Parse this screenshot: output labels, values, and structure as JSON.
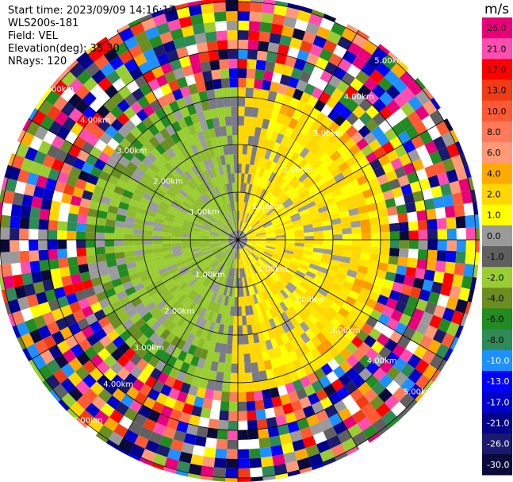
{
  "header": {
    "start_time": "Start time: 2023/09/09 14:16:17",
    "instrument": "WLS200s-181",
    "field": "Field: VEL",
    "elevation": "Elevation(deg): 35.30",
    "nrays": "NRays: 120"
  },
  "chart_data": {
    "type": "heatmap",
    "projection": "polar-ppi",
    "field": "VEL",
    "nrays": 120,
    "elevation_deg": 35.3,
    "unit": "m/s",
    "range_ring_labels": [
      "1.00km",
      "2.00km",
      "3.00km",
      "4.00km",
      "5.00km"
    ],
    "colorbar": {
      "ticks": [
        "26.0",
        "21.0",
        "17.0",
        "13.0",
        "10.0",
        "8.0",
        "6.0",
        "4.0",
        "2.0",
        "1.0",
        "0.0",
        "-1.0",
        "-2.0",
        "-4.0",
        "-6.0",
        "-8.0",
        "-10.0",
        "-13.0",
        "-17.0",
        "-21.0",
        "-26.0",
        "-30.0"
      ],
      "colors": [
        "#e8007a",
        "#ff4db0",
        "#ff0000",
        "#f03c14",
        "#ff5a32",
        "#ff7a5a",
        "#ff9a78",
        "#ffaa00",
        "#ffd700",
        "#ffff00",
        "#9a9a9a",
        "#606060",
        "#9acd32",
        "#6b8e23",
        "#228b22",
        "#2e8b57",
        "#1e90ff",
        "#0000ff",
        "#0000cd",
        "#00008b",
        "#1a1a6e",
        "#0a0a3a"
      ]
    }
  }
}
